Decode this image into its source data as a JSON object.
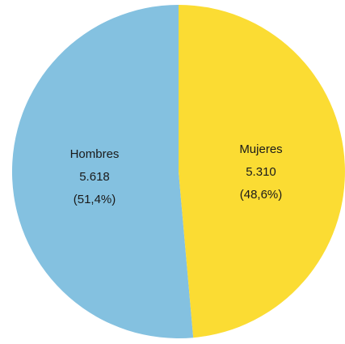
{
  "chart_data": {
    "type": "pie",
    "slices": [
      {
        "name": "Hombres",
        "value": 5618,
        "value_label": "5.618",
        "percent_label": "(51,4%)",
        "color": "#84c1e0"
      },
      {
        "name": "Mujeres",
        "value": 5310,
        "value_label": "5.310",
        "percent_label": "(48,6%)",
        "color": "#fbdc33"
      }
    ],
    "start_angle_deg": 0,
    "direction": "clockwise",
    "legend": "none"
  }
}
